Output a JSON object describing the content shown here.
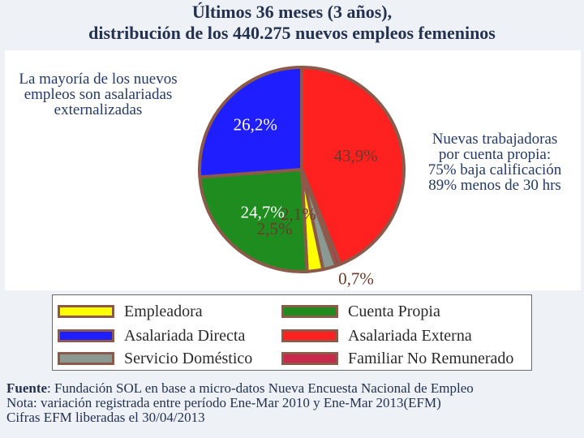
{
  "title": {
    "line1": "Últimos 36 meses (3 años),",
    "line2": "distribución de los 440.275 nuevos empleos femeninos"
  },
  "annotations": {
    "left_note": "La mayoría de los nuevos empleos son asalariadas externalizadas",
    "right_note": {
      "line1": "Nuevas trabajadoras",
      "line2": "por cuenta propia:",
      "line3": "75% baja calificación",
      "line4": "89% menos de 30 hrs"
    }
  },
  "chart_data": {
    "type": "pie",
    "title": "Últimos 36 meses (3 años), distribución de los 440.275 nuevos empleos femeninos",
    "slices": [
      {
        "name": "Asalariada Externa",
        "value": 43.9,
        "label": "43,9%",
        "color": "#ff2020"
      },
      {
        "name": "Familiar No Remunerado",
        "value": 0.7,
        "label": "0,7%",
        "color": "#c8284a"
      },
      {
        "name": "Servicio Doméstico",
        "value": 2.1,
        "label": "2,1%",
        "color": "#8a9a92"
      },
      {
        "name": "Empleadora",
        "value": 2.5,
        "label": "2,5%",
        "color": "#ffff00"
      },
      {
        "name": "Cuenta Propia",
        "value": 24.7,
        "label": "24,7%",
        "color": "#1e8c1e"
      },
      {
        "name": "Asalariada Directa",
        "value": 26.2,
        "label": "26,2%",
        "color": "#1e1eff"
      }
    ]
  },
  "legend": [
    {
      "label": "Empleadora",
      "color": "#ffff00"
    },
    {
      "label": "Cuenta Propia",
      "color": "#1e8c1e"
    },
    {
      "label": "Asalariada Directa",
      "color": "#1e1eff"
    },
    {
      "label": "Asalariada Externa",
      "color": "#ff2020"
    },
    {
      "label": "Servicio Doméstico",
      "color": "#8a9a92"
    },
    {
      "label": "Familiar No Remunerado",
      "color": "#c8284a"
    }
  ],
  "source": {
    "prefix": "Fuente",
    "text": ": Fundación SOL en base a micro-datos Nueva Encuesta Nacional de Empleo",
    "note": "Nota: variación registrada entre período Ene-Mar 2010 y Ene-Mar 2013(EFM)",
    "release": "Cifras EFM liberadas el 30/04/2013"
  }
}
